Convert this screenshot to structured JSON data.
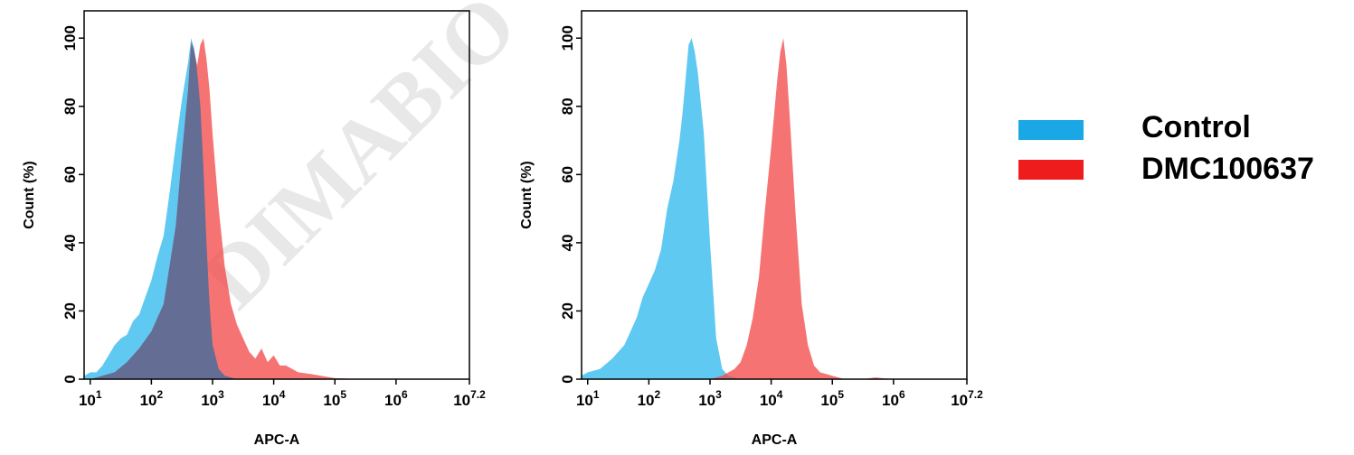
{
  "watermark": "DIMABIO",
  "colors": {
    "control": "#4fc3ef",
    "sample": "#f24b4b",
    "overlap": "#5a6e96",
    "axis": "#000000"
  },
  "legend": [
    {
      "label": "Control",
      "color": "#1aa7e6"
    },
    {
      "label": "DMC100637",
      "color": "#ee1c1c"
    }
  ],
  "chart_data": [
    {
      "type": "area",
      "xlabel": "APC-A",
      "ylabel": "Count (%)",
      "xscale": "log",
      "xlim": [
        0.9,
        7.2
      ],
      "ylim": [
        0,
        108
      ],
      "yticks": [
        0,
        20,
        40,
        60,
        80,
        100
      ],
      "xticks": [
        {
          "base": "10",
          "exp": "1",
          "value": 1
        },
        {
          "base": "10",
          "exp": "2",
          "value": 2
        },
        {
          "base": "10",
          "exp": "3",
          "value": 3
        },
        {
          "base": "10",
          "exp": "4",
          "value": 4
        },
        {
          "base": "10",
          "exp": "5",
          "value": 5
        },
        {
          "base": "10",
          "exp": "6",
          "value": 6
        },
        {
          "base": "10",
          "exp": "7.2",
          "value": 7.2
        }
      ],
      "series": [
        {
          "name": "Control",
          "x": [
            0.9,
            1.0,
            1.1,
            1.2,
            1.3,
            1.4,
            1.5,
            1.6,
            1.7,
            1.8,
            1.9,
            2.0,
            2.1,
            2.2,
            2.3,
            2.4,
            2.5,
            2.6,
            2.65,
            2.7,
            2.75,
            2.8,
            2.85,
            2.9,
            2.95,
            3.0,
            3.1,
            3.2,
            3.3,
            3.4,
            3.6,
            4.0,
            7.2
          ],
          "y": [
            1,
            2,
            2,
            4,
            7,
            10,
            12,
            13,
            17,
            19,
            24,
            29,
            36,
            42,
            55,
            69,
            82,
            93,
            100,
            97,
            90,
            80,
            62,
            40,
            22,
            10,
            3,
            1,
            0.5,
            0,
            0,
            0,
            0
          ]
        },
        {
          "name": "DMC100637",
          "x": [
            0.9,
            1.0,
            1.2,
            1.4,
            1.6,
            1.8,
            2.0,
            2.2,
            2.4,
            2.5,
            2.6,
            2.65,
            2.7,
            2.75,
            2.8,
            2.85,
            2.9,
            2.95,
            3.0,
            3.1,
            3.2,
            3.3,
            3.4,
            3.5,
            3.6,
            3.7,
            3.8,
            3.9,
            4.0,
            4.1,
            4.2,
            4.4,
            4.6,
            5.0,
            5.5,
            6.2,
            7.2
          ],
          "y": [
            0,
            0,
            1,
            2,
            5,
            9,
            14,
            22,
            45,
            66,
            85,
            99,
            96,
            92,
            98,
            100,
            94,
            85,
            72,
            50,
            33,
            22,
            16,
            12,
            8,
            6,
            9,
            5,
            7,
            4,
            4,
            2,
            1.5,
            0.3,
            0,
            0,
            0
          ]
        }
      ]
    },
    {
      "type": "area",
      "xlabel": "APC-A",
      "ylabel": "Count (%)",
      "xscale": "log",
      "xlim": [
        0.9,
        7.2
      ],
      "ylim": [
        0,
        108
      ],
      "yticks": [
        0,
        20,
        40,
        60,
        80,
        100
      ],
      "xticks": [
        {
          "base": "10",
          "exp": "1",
          "value": 1
        },
        {
          "base": "10",
          "exp": "2",
          "value": 2
        },
        {
          "base": "10",
          "exp": "3",
          "value": 3
        },
        {
          "base": "10",
          "exp": "4",
          "value": 4
        },
        {
          "base": "10",
          "exp": "5",
          "value": 5
        },
        {
          "base": "10",
          "exp": "6",
          "value": 6
        },
        {
          "base": "10",
          "exp": "7.2",
          "value": 7.2
        }
      ],
      "series": [
        {
          "name": "Control",
          "x": [
            0.9,
            1.0,
            1.2,
            1.4,
            1.6,
            1.7,
            1.8,
            1.9,
            2.0,
            2.1,
            2.2,
            2.3,
            2.4,
            2.5,
            2.55,
            2.6,
            2.65,
            2.7,
            2.75,
            2.8,
            2.9,
            3.0,
            3.1,
            3.2,
            3.3,
            3.5,
            4.0,
            7.2
          ],
          "y": [
            1,
            2,
            3,
            6,
            10,
            14,
            18,
            24,
            28,
            32,
            38,
            50,
            58,
            70,
            78,
            88,
            98,
            100,
            96,
            90,
            72,
            40,
            12,
            3,
            1,
            0,
            0,
            0
          ]
        },
        {
          "name": "DMC100637",
          "x": [
            0.9,
            2.5,
            3.0,
            3.2,
            3.4,
            3.5,
            3.6,
            3.7,
            3.8,
            3.9,
            4.0,
            4.1,
            4.15,
            4.2,
            4.25,
            4.3,
            4.4,
            4.5,
            4.6,
            4.7,
            4.8,
            5.0,
            5.2,
            5.5,
            5.7,
            6.0,
            7.2
          ],
          "y": [
            0,
            0,
            0,
            1,
            3,
            5,
            10,
            18,
            30,
            50,
            68,
            88,
            96,
            100,
            92,
            78,
            48,
            22,
            10,
            4,
            2,
            1,
            0,
            0,
            0.5,
            0,
            0
          ]
        }
      ]
    }
  ]
}
